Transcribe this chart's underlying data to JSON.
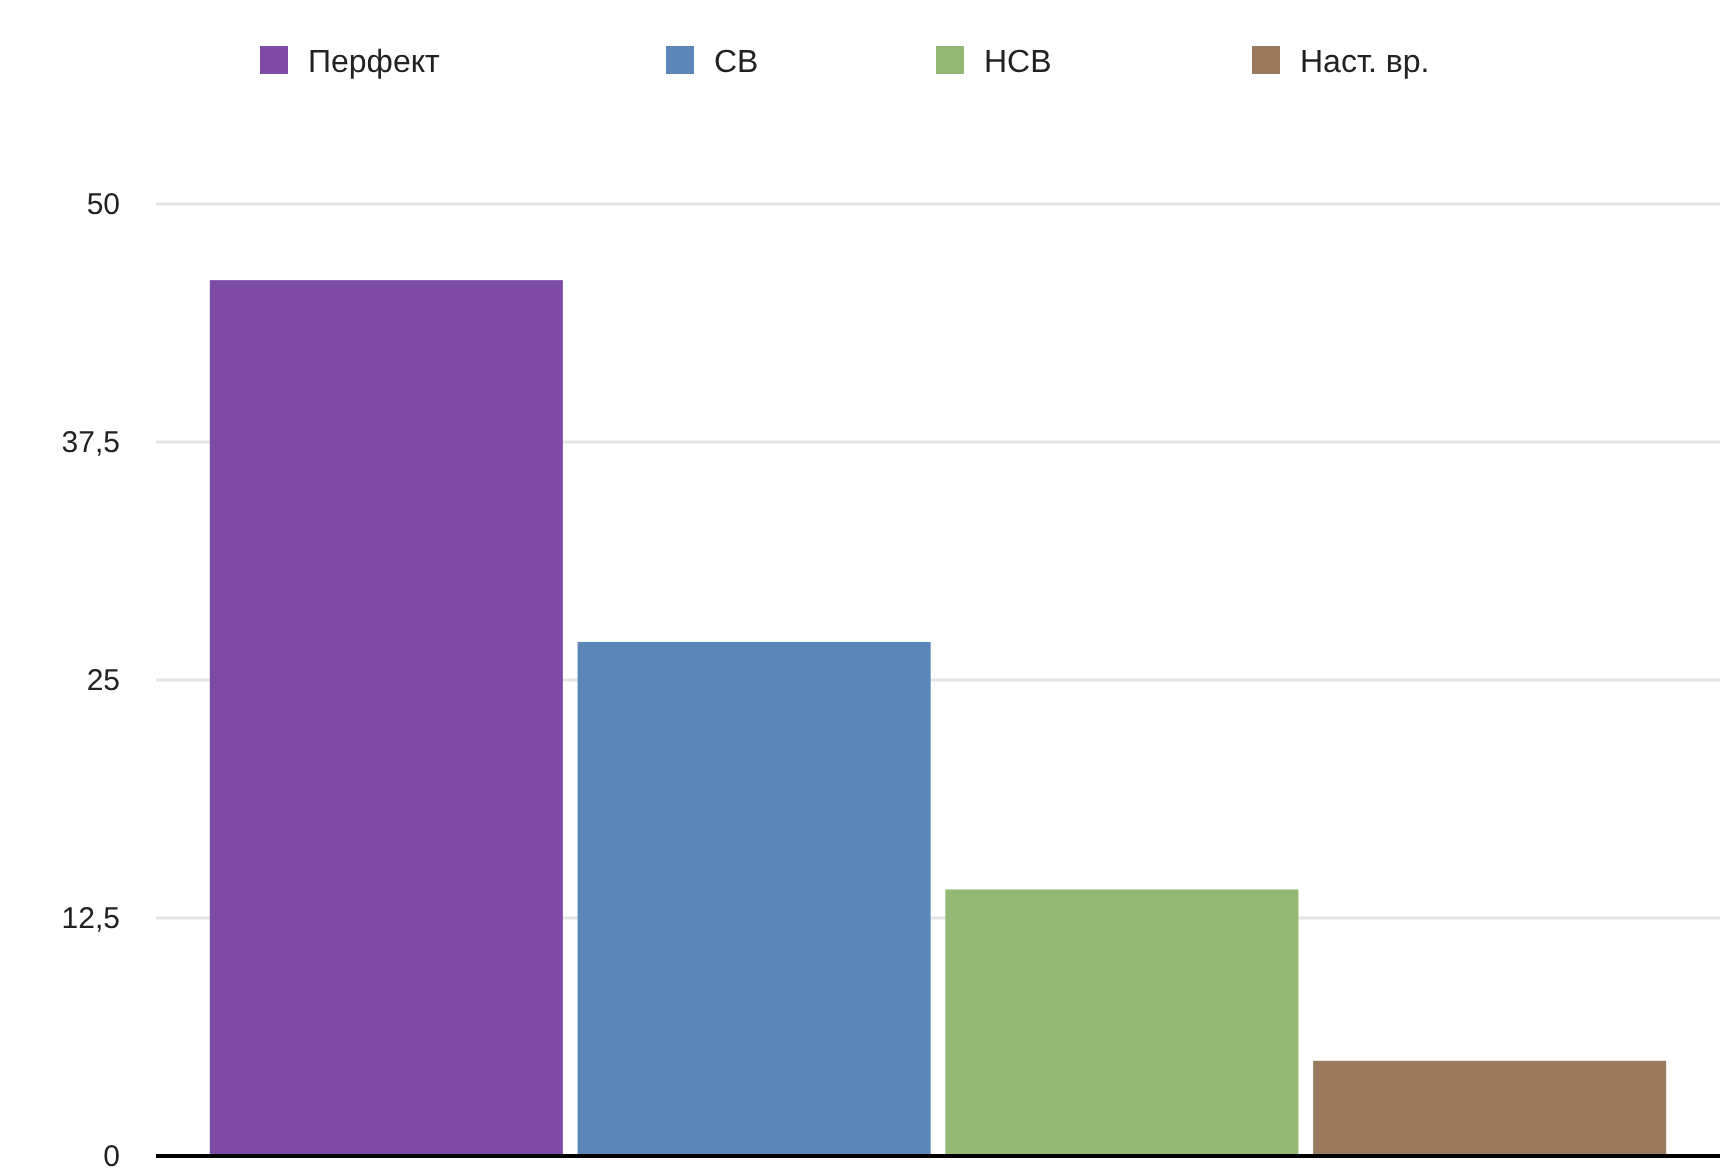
{
  "chart_data": {
    "type": "bar",
    "categories": [
      null
    ],
    "series": [
      {
        "name": "Перфект",
        "color": "#7d4aa6",
        "values": [
          46
        ]
      },
      {
        "name": "СВ",
        "color": "#5b86b8",
        "values": [
          27
        ]
      },
      {
        "name": "НСВ",
        "color": "#92b873",
        "values": [
          14
        ]
      },
      {
        "name": "Наст. вр.",
        "color": "#9a7a5c",
        "values": [
          5
        ]
      }
    ],
    "ylim": [
      0,
      50
    ],
    "yticks": [
      0,
      {
        "value": 12.5,
        "label": "12,5"
      },
      25,
      {
        "value": 37.5,
        "label": "37,5"
      },
      50
    ],
    "grid": "y",
    "legend": "top"
  }
}
